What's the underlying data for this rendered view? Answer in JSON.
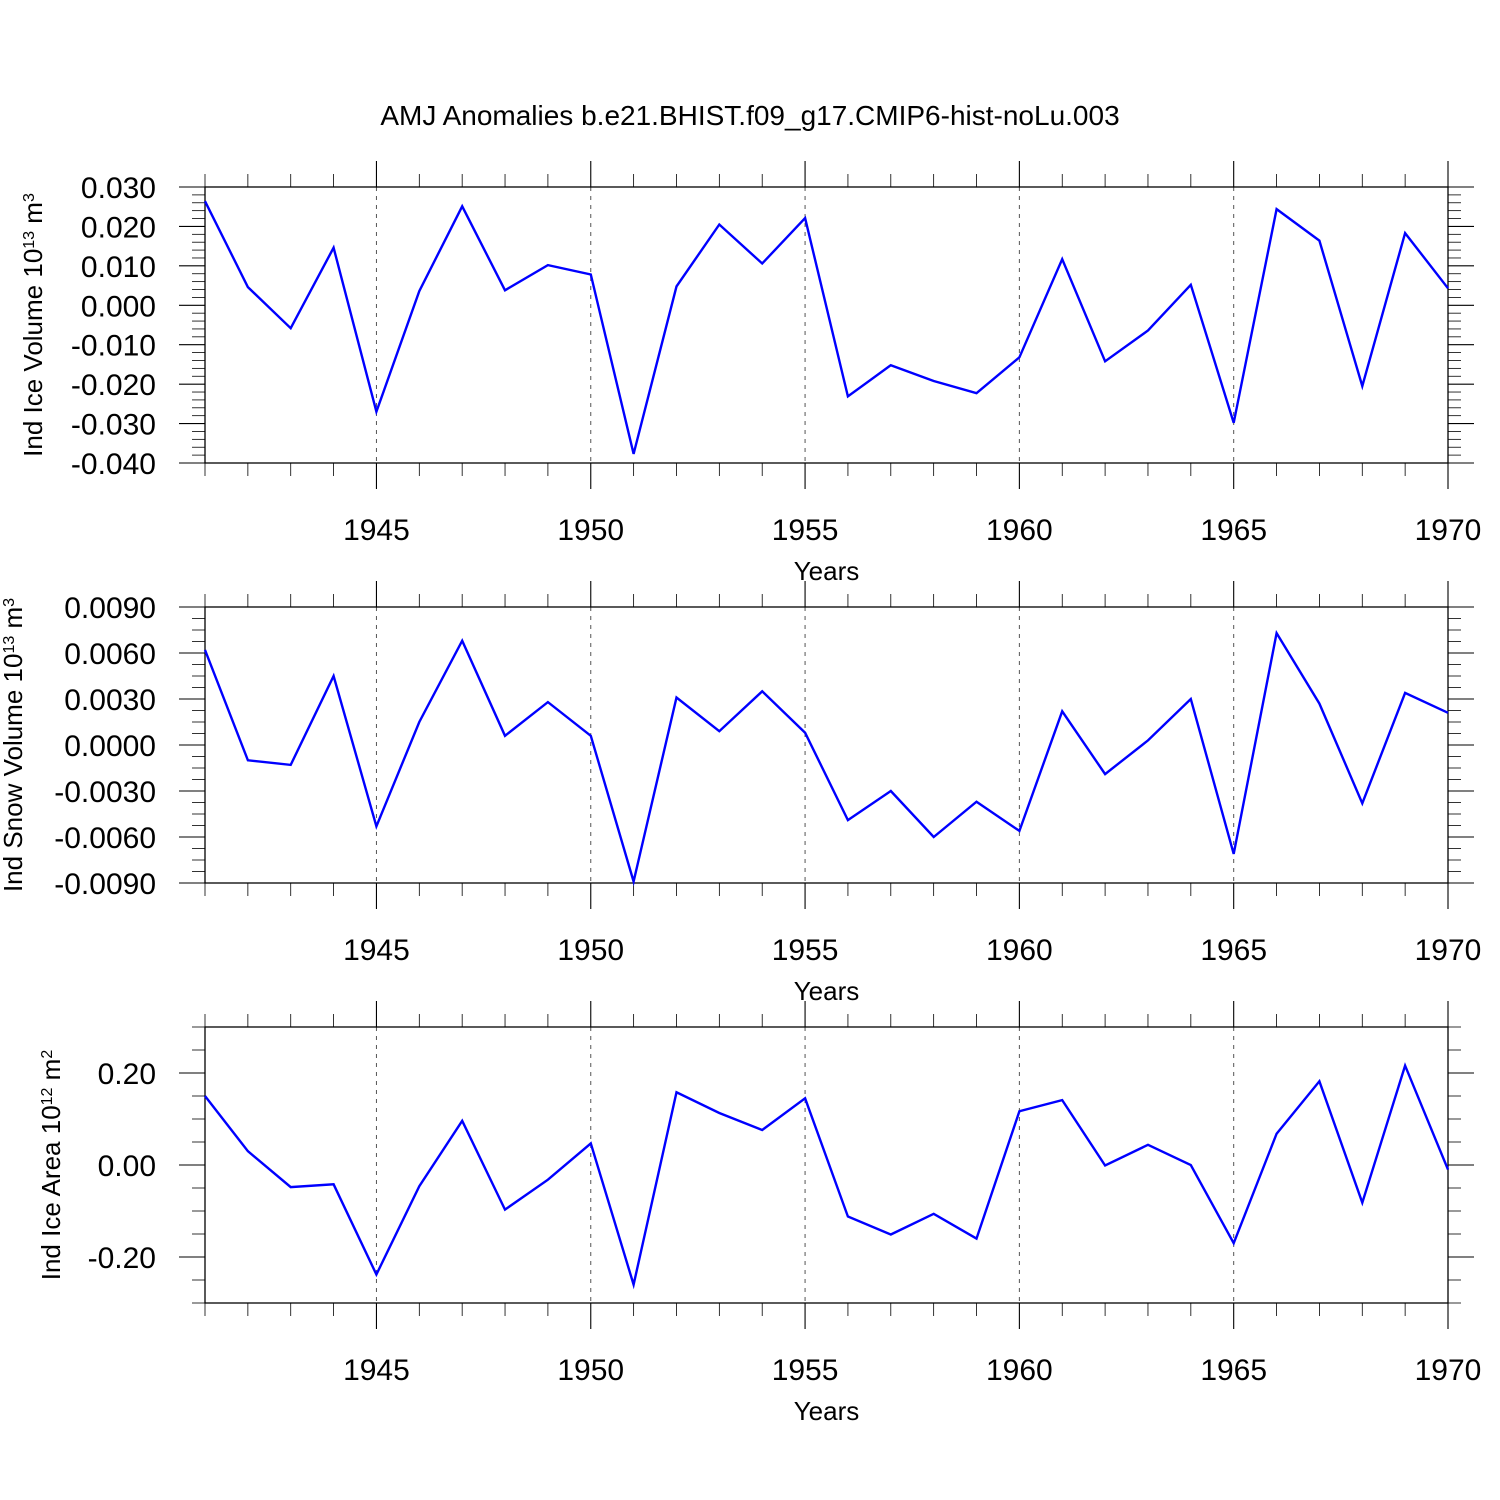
{
  "title": "AMJ Anomalies b.e21.BHIST.f09_g17.CMIP6-hist-noLu.003",
  "colors": {
    "line": "#0000ff",
    "axis": "#000000",
    "grid": "#555555"
  },
  "chart_data": [
    {
      "type": "line",
      "xlabel": "Years",
      "ylabel": {
        "main": "Ind Ice Volume 10",
        "exp": "13",
        "unit": " m",
        "unit_exp": "3"
      },
      "xlim": [
        1941,
        1970
      ],
      "ylim": [
        -0.04,
        0.03
      ],
      "x_ticks": [
        "1945",
        "1950",
        "1955",
        "1960",
        "1965",
        "1970"
      ],
      "y_ticks": [
        "0.030",
        "0.020",
        "0.010",
        "0.000",
        "-0.010",
        "-0.020",
        "-0.030",
        "-0.040"
      ],
      "grid_x": [
        1945,
        1950,
        1955,
        1960,
        1965
      ],
      "x": [
        1941,
        1942,
        1943,
        1944,
        1945,
        1946,
        1947,
        1948,
        1949,
        1950,
        1951,
        1952,
        1953,
        1954,
        1955,
        1956,
        1957,
        1958,
        1959,
        1960,
        1961,
        1962,
        1963,
        1964,
        1965,
        1966,
        1967,
        1968,
        1969,
        1970
      ],
      "series": [
        {
          "values": [
            0.0264,
            0.0046,
            -0.0058,
            0.0146,
            -0.027,
            0.0036,
            0.0251,
            0.0038,
            0.0102,
            0.0078,
            -0.0377,
            0.0048,
            0.0205,
            0.0106,
            0.0221,
            -0.0231,
            -0.0152,
            -0.0192,
            -0.0223,
            -0.0132,
            0.0117,
            -0.0142,
            -0.0064,
            0.0052,
            -0.0298,
            0.0244,
            0.0164,
            -0.0205,
            0.0183,
            0.0043
          ]
        }
      ]
    },
    {
      "type": "line",
      "xlabel": "Years",
      "ylabel": {
        "main": "Ind Snow Volume 10",
        "exp": "13",
        "unit": " m",
        "unit_exp": "3"
      },
      "xlim": [
        1941,
        1970
      ],
      "ylim": [
        -0.009,
        0.009
      ],
      "x_ticks": [
        "1945",
        "1950",
        "1955",
        "1960",
        "1965",
        "1970"
      ],
      "y_ticks": [
        "0.0090",
        "0.0060",
        "0.0030",
        "0.0000",
        "-0.0030",
        "-0.0060",
        "-0.0090"
      ],
      "grid_x": [
        1945,
        1950,
        1955,
        1960,
        1965
      ],
      "x": [
        1941,
        1942,
        1943,
        1944,
        1945,
        1946,
        1947,
        1948,
        1949,
        1950,
        1951,
        1952,
        1953,
        1954,
        1955,
        1956,
        1957,
        1958,
        1959,
        1960,
        1961,
        1962,
        1963,
        1964,
        1965,
        1966,
        1967,
        1968,
        1969,
        1970
      ],
      "series": [
        {
          "values": [
            0.0062,
            -0.001,
            -0.0013,
            0.0045,
            -0.0053,
            0.0015,
            0.0068,
            0.0006,
            0.0028,
            0.0006,
            -0.0089,
            0.0031,
            0.0009,
            0.0035,
            0.0008,
            -0.0049,
            -0.003,
            -0.006,
            -0.0037,
            -0.0056,
            0.0022,
            -0.0019,
            0.0003,
            0.003,
            -0.0071,
            0.0073,
            0.0027,
            -0.0038,
            0.0034,
            0.0021
          ]
        }
      ]
    },
    {
      "type": "line",
      "xlabel": "Years",
      "ylabel": {
        "main": "Ind Ice Area 10",
        "exp": "12",
        "unit": " m",
        "unit_exp": "2"
      },
      "xlim": [
        1941,
        1970
      ],
      "ylim": [
        -0.3,
        0.3
      ],
      "x_ticks": [
        "1945",
        "1950",
        "1955",
        "1960",
        "1965",
        "1970"
      ],
      "y_ticks": [
        "0.20",
        "0.00",
        "-0.20"
      ],
      "grid_x": [
        1945,
        1950,
        1955,
        1960,
        1965
      ],
      "x": [
        1941,
        1942,
        1943,
        1944,
        1945,
        1946,
        1947,
        1948,
        1949,
        1950,
        1951,
        1952,
        1953,
        1954,
        1955,
        1956,
        1957,
        1958,
        1959,
        1960,
        1961,
        1962,
        1963,
        1964,
        1965,
        1966,
        1967,
        1968,
        1969,
        1970
      ],
      "series": [
        {
          "values": [
            0.15,
            0.03,
            -0.048,
            -0.042,
            -0.238,
            -0.046,
            0.096,
            -0.097,
            -0.032,
            0.047,
            -0.26,
            0.158,
            0.113,
            0.076,
            0.145,
            -0.112,
            -0.151,
            -0.106,
            -0.16,
            0.117,
            0.141,
            -0.001,
            0.044,
            0.0,
            -0.17,
            0.068,
            0.182,
            -0.082,
            0.216,
            -0.01
          ]
        }
      ]
    }
  ]
}
